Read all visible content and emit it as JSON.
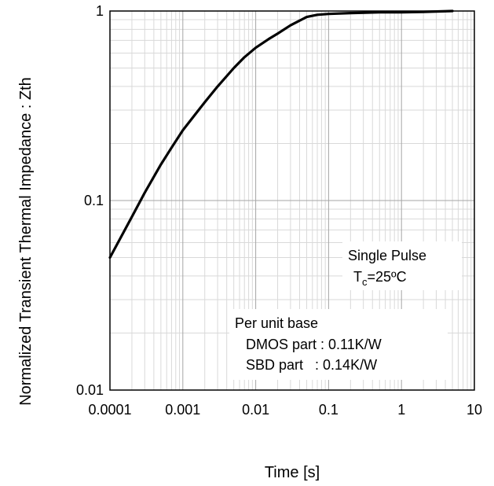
{
  "chart_data": {
    "type": "line",
    "xlabel": "Time [s]",
    "ylabel": "Normalized Transient Thermal Impedance : Zth",
    "xscale": "log",
    "yscale": "log",
    "xlim": [
      0.0001,
      10
    ],
    "ylim": [
      0.01,
      1
    ],
    "grid": true,
    "x_ticks": [
      {
        "value": 0.0001,
        "label": "0.0001"
      },
      {
        "value": 0.001,
        "label": "0.001"
      },
      {
        "value": 0.01,
        "label": "0.01"
      },
      {
        "value": 0.1,
        "label": "0.1"
      },
      {
        "value": 1,
        "label": "1"
      },
      {
        "value": 10,
        "label": "10"
      }
    ],
    "y_ticks": [
      {
        "value": 0.01,
        "label": "0.01"
      },
      {
        "value": 0.1,
        "label": "0.1"
      },
      {
        "value": 1,
        "label": "1"
      }
    ],
    "series": [
      {
        "x": [
          0.0001,
          0.0002,
          0.0003,
          0.0005,
          0.0007,
          0.001,
          0.002,
          0.003,
          0.005,
          0.007,
          0.01,
          0.015,
          0.02,
          0.03,
          0.05,
          0.07,
          0.1,
          0.2,
          0.5,
          1,
          2,
          5
        ],
        "y": [
          0.05,
          0.082,
          0.11,
          0.155,
          0.19,
          0.235,
          0.33,
          0.4,
          0.5,
          0.57,
          0.64,
          0.71,
          0.76,
          0.84,
          0.93,
          0.955,
          0.965,
          0.975,
          0.985,
          0.985,
          0.99,
          1.0
        ],
        "color": "#000000"
      }
    ],
    "annotations": {
      "pulse_line1": "Single Pulse",
      "pulse_line2_base": "T",
      "pulse_line2_sub": "c",
      "pulse_line2_rest": "=25ºC",
      "base_title": "Per unit base",
      "base_dmos": "DMOS part : 0.11K/W",
      "base_sbd": "SBD part   : 0.14K/W"
    }
  }
}
